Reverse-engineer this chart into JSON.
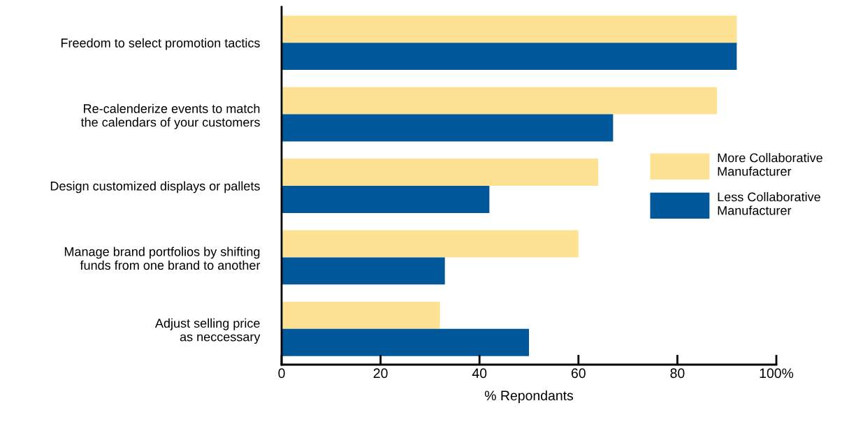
{
  "chart_data": {
    "type": "bar",
    "orientation": "horizontal",
    "xlabel": "% Repondants",
    "categories": [
      "Freedom to select promotion tactics",
      "Re-calenderize events to match\nthe calendars of your customers",
      "Design customized displays or pallets",
      "Manage brand portfolios by shifting\nfunds from one brand to another",
      "Adjust selling price\nas neccessary"
    ],
    "series": [
      {
        "name": "More Collaborative\nManufacturer",
        "color": "#fee293",
        "values": [
          92,
          88,
          64,
          60,
          32
        ]
      },
      {
        "name": "Less Collaborative\nManufacturer",
        "color": "#00579a",
        "values": [
          92,
          67,
          42,
          33,
          50
        ]
      }
    ],
    "xlim": [
      0,
      100
    ],
    "xticks": [
      0,
      20,
      40,
      60,
      80,
      {
        "value": 100,
        "label": "100%"
      }
    ],
    "grid": false,
    "legend": "right"
  }
}
